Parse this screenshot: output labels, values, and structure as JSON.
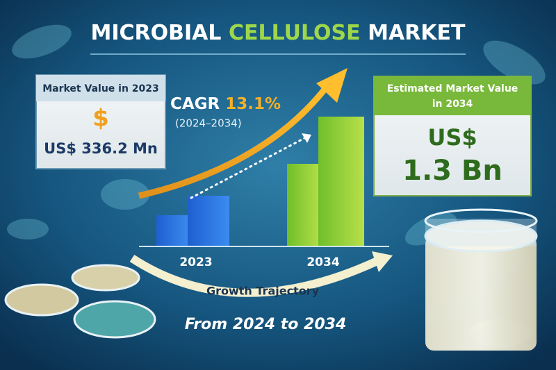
{
  "title": {
    "part1": "MICROBIAL",
    "part2": "CELLULOSE",
    "part3": "MARKET"
  },
  "left_card": {
    "label": "Market Value in 2023",
    "icon": "$",
    "value": "US$ 336.2 Mn"
  },
  "cagr": {
    "label": "CAGR",
    "value": "13.1%",
    "period": "(2024–2034)"
  },
  "right_card": {
    "label_line1": "Estimated Market Value",
    "label_line2": "in 2034",
    "value_line1": "US$",
    "value_line2": "1.3 Bn"
  },
  "bar_labels": [
    "2023",
    "2034"
  ],
  "arc_label": "Growth Trajectory",
  "footer": "From 2024 to 2034"
}
